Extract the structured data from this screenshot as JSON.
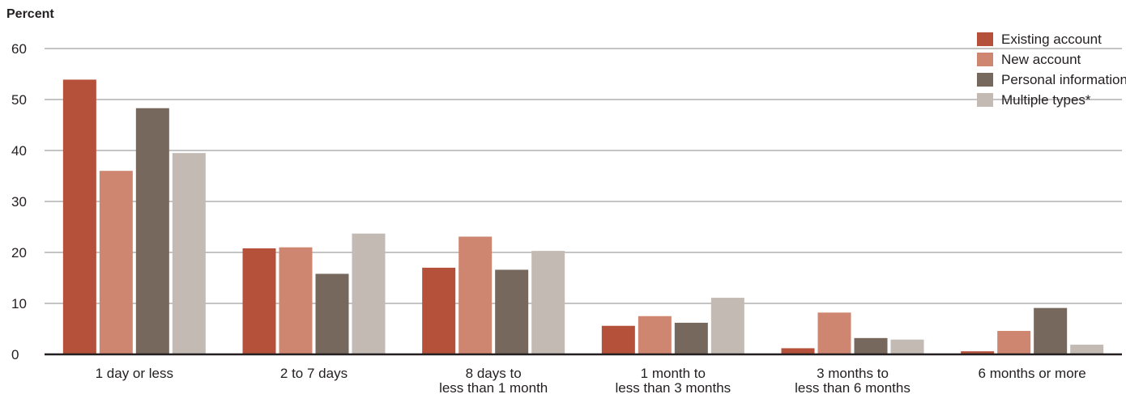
{
  "chart_data": {
    "type": "bar",
    "ylabel": "Percent",
    "xlabel": "",
    "ylim": [
      0,
      60
    ],
    "yticks": [
      0,
      10,
      20,
      30,
      40,
      50,
      60
    ],
    "grid": true,
    "legend_position": "top-right",
    "categories": [
      [
        "1 day or less"
      ],
      [
        "2 to 7 days"
      ],
      [
        "8 days to",
        "less than 1 month"
      ],
      [
        "1 month to",
        "less than 3 months"
      ],
      [
        "3 months to",
        "less than 6 months"
      ],
      [
        "6 months or more"
      ]
    ],
    "series": [
      {
        "name": "Existing account",
        "color": "#b5503a",
        "values": [
          53.9,
          20.8,
          17.0,
          5.6,
          1.2,
          0.6
        ]
      },
      {
        "name": "New account",
        "color": "#cf8670",
        "values": [
          36.0,
          21.0,
          23.1,
          7.5,
          8.2,
          4.6
        ]
      },
      {
        "name": "Personal information",
        "color": "#76685d",
        "values": [
          48.3,
          15.8,
          16.6,
          6.2,
          3.2,
          9.1
        ]
      },
      {
        "name": "Multiple types*",
        "color": "#c3bab4",
        "values": [
          39.5,
          23.7,
          20.3,
          11.1,
          2.9,
          1.9
        ]
      }
    ]
  }
}
